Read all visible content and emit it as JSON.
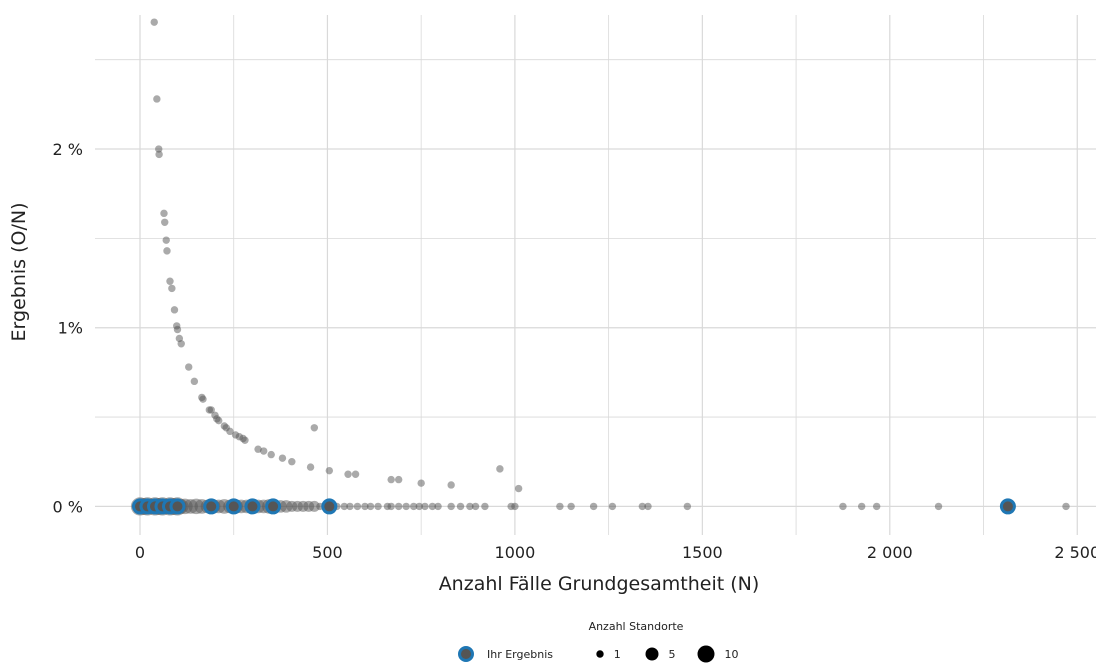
{
  "chart_data": {
    "type": "scatter",
    "xlabel": "Anzahl Fälle Grundgesamtheit (N)",
    "ylabel": "Ergebnis (O/N)",
    "xlim": [
      -120,
      2550
    ],
    "ylim": [
      -0.0016,
      0.0275
    ],
    "x_ticks": [
      {
        "value": 0,
        "label": "0"
      },
      {
        "value": 500,
        "label": "500"
      },
      {
        "value": 1000,
        "label": "1000"
      },
      {
        "value": 1500,
        "label": "1500"
      },
      {
        "value": 2000,
        "label": "2 000"
      },
      {
        "value": 2500,
        "label": "2 500"
      }
    ],
    "y_ticks": [
      {
        "value": 0,
        "label": "0 %"
      },
      {
        "value": 0.01,
        "label": "1%"
      },
      {
        "value": 0.02,
        "label": "2 %"
      }
    ],
    "grid": true,
    "legend_position": "bottom",
    "legend": {
      "title": "Anzahl Standorte",
      "own_result_label": "Ihr Ergebnis",
      "size_entries": [
        {
          "label": "1",
          "count": 1
        },
        {
          "label": "5",
          "count": 5
        },
        {
          "label": "10",
          "count": 10
        }
      ]
    },
    "colors": {
      "points": "#555555",
      "highlight": "#1f77b4",
      "grid": "#d9d9d9"
    },
    "series": [
      {
        "role": "all",
        "points": [
          {
            "x": 38,
            "y": 0.0271
          },
          {
            "x": 45,
            "y": 0.0228
          },
          {
            "x": 50,
            "y": 0.02
          },
          {
            "x": 51,
            "y": 0.0197
          },
          {
            "x": 64,
            "y": 0.0164
          },
          {
            "x": 66,
            "y": 0.0159
          },
          {
            "x": 70,
            "y": 0.0149
          },
          {
            "x": 72,
            "y": 0.0143
          },
          {
            "x": 80,
            "y": 0.0126
          },
          {
            "x": 85,
            "y": 0.0122
          },
          {
            "x": 92,
            "y": 0.011
          },
          {
            "x": 98,
            "y": 0.0101
          },
          {
            "x": 100,
            "y": 0.0099
          },
          {
            "x": 105,
            "y": 0.0094
          },
          {
            "x": 110,
            "y": 0.0091
          },
          {
            "x": 130,
            "y": 0.0078
          },
          {
            "x": 145,
            "y": 0.007
          },
          {
            "x": 165,
            "y": 0.0061
          },
          {
            "x": 168,
            "y": 0.006
          },
          {
            "x": 185,
            "y": 0.0054
          },
          {
            "x": 190,
            "y": 0.0054
          },
          {
            "x": 200,
            "y": 0.0051
          },
          {
            "x": 205,
            "y": 0.0049
          },
          {
            "x": 210,
            "y": 0.0048
          },
          {
            "x": 225,
            "y": 0.0045
          },
          {
            "x": 230,
            "y": 0.0044
          },
          {
            "x": 240,
            "y": 0.0042
          },
          {
            "x": 255,
            "y": 0.004
          },
          {
            "x": 265,
            "y": 0.0039
          },
          {
            "x": 275,
            "y": 0.0038
          },
          {
            "x": 280,
            "y": 0.0037
          },
          {
            "x": 315,
            "y": 0.0032
          },
          {
            "x": 330,
            "y": 0.0031
          },
          {
            "x": 350,
            "y": 0.0029
          },
          {
            "x": 380,
            "y": 0.0027
          },
          {
            "x": 405,
            "y": 0.0025
          },
          {
            "x": 455,
            "y": 0.0022
          },
          {
            "x": 465,
            "y": 0.0044
          },
          {
            "x": 505,
            "y": 0.002
          },
          {
            "x": 555,
            "y": 0.0018
          },
          {
            "x": 575,
            "y": 0.0018
          },
          {
            "x": 670,
            "y": 0.0015
          },
          {
            "x": 690,
            "y": 0.0015
          },
          {
            "x": 750,
            "y": 0.0013
          },
          {
            "x": 830,
            "y": 0.0012
          },
          {
            "x": 960,
            "y": 0.0021
          },
          {
            "x": 1010,
            "y": 0.001
          },
          {
            "x": 0,
            "y": 0,
            "size": 10
          },
          {
            "x": 10,
            "y": 0,
            "size": 8
          },
          {
            "x": 20,
            "y": 0,
            "size": 10
          },
          {
            "x": 30,
            "y": 0,
            "size": 6
          },
          {
            "x": 40,
            "y": 0,
            "size": 10
          },
          {
            "x": 50,
            "y": 0,
            "size": 8
          },
          {
            "x": 60,
            "y": 0,
            "size": 10
          },
          {
            "x": 70,
            "y": 0,
            "size": 6
          },
          {
            "x": 80,
            "y": 0,
            "size": 10
          },
          {
            "x": 90,
            "y": 0,
            "size": 8
          },
          {
            "x": 100,
            "y": 0,
            "size": 10
          },
          {
            "x": 110,
            "y": 0,
            "size": 5
          },
          {
            "x": 120,
            "y": 0,
            "size": 6
          },
          {
            "x": 135,
            "y": 0,
            "size": 5
          },
          {
            "x": 150,
            "y": 0,
            "size": 6
          },
          {
            "x": 165,
            "y": 0,
            "size": 5
          },
          {
            "x": 180,
            "y": 0,
            "size": 4
          },
          {
            "x": 195,
            "y": 0,
            "size": 5
          },
          {
            "x": 210,
            "y": 0,
            "size": 4
          },
          {
            "x": 225,
            "y": 0,
            "size": 5
          },
          {
            "x": 240,
            "y": 0,
            "size": 4
          },
          {
            "x": 255,
            "y": 0,
            "size": 5
          },
          {
            "x": 270,
            "y": 0,
            "size": 4
          },
          {
            "x": 285,
            "y": 0,
            "size": 4
          },
          {
            "x": 300,
            "y": 0,
            "size": 5
          },
          {
            "x": 315,
            "y": 0,
            "size": 4
          },
          {
            "x": 330,
            "y": 0,
            "size": 4
          },
          {
            "x": 345,
            "y": 0,
            "size": 5
          },
          {
            "x": 360,
            "y": 0,
            "size": 3
          },
          {
            "x": 375,
            "y": 0,
            "size": 3
          },
          {
            "x": 390,
            "y": 0,
            "size": 3
          },
          {
            "x": 405,
            "y": 0,
            "size": 2
          },
          {
            "x": 420,
            "y": 0,
            "size": 2
          },
          {
            "x": 435,
            "y": 0,
            "size": 2
          },
          {
            "x": 450,
            "y": 0,
            "size": 2
          },
          {
            "x": 465,
            "y": 0,
            "size": 2
          },
          {
            "x": 480,
            "y": 0,
            "size": 1
          },
          {
            "x": 495,
            "y": 0,
            "size": 1
          },
          {
            "x": 510,
            "y": 0,
            "size": 1
          },
          {
            "x": 525,
            "y": 0,
            "size": 1
          },
          {
            "x": 545,
            "y": 0,
            "size": 1
          },
          {
            "x": 560,
            "y": 0,
            "size": 1
          },
          {
            "x": 580,
            "y": 0,
            "size": 1
          },
          {
            "x": 600,
            "y": 0,
            "size": 1
          },
          {
            "x": 615,
            "y": 0,
            "size": 1
          },
          {
            "x": 635,
            "y": 0,
            "size": 1
          },
          {
            "x": 660,
            "y": 0,
            "size": 1
          },
          {
            "x": 670,
            "y": 0,
            "size": 1
          },
          {
            "x": 690,
            "y": 0,
            "size": 1
          },
          {
            "x": 710,
            "y": 0,
            "size": 1
          },
          {
            "x": 730,
            "y": 0,
            "size": 1
          },
          {
            "x": 745,
            "y": 0,
            "size": 1
          },
          {
            "x": 760,
            "y": 0,
            "size": 1
          },
          {
            "x": 780,
            "y": 0,
            "size": 1
          },
          {
            "x": 795,
            "y": 0,
            "size": 1
          },
          {
            "x": 830,
            "y": 0,
            "size": 1
          },
          {
            "x": 855,
            "y": 0,
            "size": 1
          },
          {
            "x": 880,
            "y": 0,
            "size": 1
          },
          {
            "x": 895,
            "y": 0,
            "size": 1
          },
          {
            "x": 920,
            "y": 0,
            "size": 1
          },
          {
            "x": 990,
            "y": 0,
            "size": 1
          },
          {
            "x": 1000,
            "y": 0,
            "size": 1
          },
          {
            "x": 1120,
            "y": 0,
            "size": 1
          },
          {
            "x": 1150,
            "y": 0,
            "size": 1
          },
          {
            "x": 1210,
            "y": 0,
            "size": 1
          },
          {
            "x": 1260,
            "y": 0,
            "size": 1
          },
          {
            "x": 1340,
            "y": 0,
            "size": 1
          },
          {
            "x": 1355,
            "y": 0,
            "size": 1
          },
          {
            "x": 1460,
            "y": 0,
            "size": 1
          },
          {
            "x": 1875,
            "y": 0,
            "size": 1
          },
          {
            "x": 1925,
            "y": 0,
            "size": 1
          },
          {
            "x": 1965,
            "y": 0,
            "size": 1
          },
          {
            "x": 2130,
            "y": 0,
            "size": 1
          },
          {
            "x": 2315,
            "y": 0,
            "size": 1
          },
          {
            "x": 2470,
            "y": 0,
            "size": 1
          }
        ]
      },
      {
        "role": "own_result",
        "name": "Ihr Ergebnis",
        "points": [
          {
            "x": 0,
            "y": 0
          },
          {
            "x": 20,
            "y": 0
          },
          {
            "x": 40,
            "y": 0
          },
          {
            "x": 60,
            "y": 0
          },
          {
            "x": 80,
            "y": 0
          },
          {
            "x": 100,
            "y": 0
          },
          {
            "x": 190,
            "y": 0
          },
          {
            "x": 250,
            "y": 0
          },
          {
            "x": 300,
            "y": 0
          },
          {
            "x": 355,
            "y": 0
          },
          {
            "x": 505,
            "y": 0
          },
          {
            "x": 2315,
            "y": 0
          }
        ]
      }
    ]
  }
}
